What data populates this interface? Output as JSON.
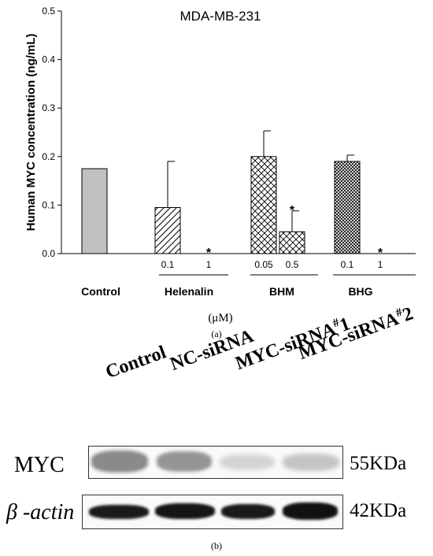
{
  "chart_data": {
    "type": "bar",
    "title": "MDA-MB-231",
    "ylabel": "Human MYC concentration (ng/mL)",
    "xlabel": "(μM)",
    "ylim": [
      0,
      0.5
    ],
    "yticks": [
      "0.0",
      "0.1",
      "0.2",
      "0.3",
      "0.4",
      "0.5"
    ],
    "groups": [
      "Control",
      "Helenalin",
      "BHM",
      "BHG"
    ],
    "bars": [
      {
        "group": "Control",
        "dose": "",
        "value": 0.175,
        "error": 0,
        "pattern": "solid-gray",
        "sig": ""
      },
      {
        "group": "Helenalin",
        "dose": "0.1",
        "value": 0.095,
        "error": 0.095,
        "pattern": "diagonal",
        "sig": ""
      },
      {
        "group": "Helenalin",
        "dose": "1",
        "value": 0,
        "error": 0,
        "pattern": "diagonal",
        "sig": "*"
      },
      {
        "group": "BHM",
        "dose": "0.05",
        "value": 0.2,
        "error": 0.053,
        "pattern": "crosshatch",
        "sig": ""
      },
      {
        "group": "BHM",
        "dose": "0.5",
        "value": 0.045,
        "error": 0.043,
        "pattern": "crosshatch",
        "sig": "*"
      },
      {
        "group": "BHG",
        "dose": "0.1",
        "value": 0.19,
        "error": 0.013,
        "pattern": "dense-crosshatch",
        "sig": ""
      },
      {
        "group": "BHG",
        "dose": "1",
        "value": 0,
        "error": 0,
        "pattern": "dense-crosshatch",
        "sig": "*"
      }
    ],
    "grid": false,
    "panel_label": "(a)"
  },
  "blot": {
    "lanes": [
      {
        "text": "Control",
        "sup": "",
        "suffix": ""
      },
      {
        "text": "NC-siRNA",
        "sup": "",
        "suffix": ""
      },
      {
        "text": "MYC-siRNA",
        "sup": "#",
        "suffix": "1"
      },
      {
        "text": "MYC-siRNA",
        "sup": "#",
        "suffix": "2"
      }
    ],
    "rows": [
      {
        "label": "MYC",
        "size": "55KDa"
      },
      {
        "label": "β -actin",
        "size": "42KDa"
      }
    ],
    "panel_label": "(b)"
  },
  "colors": {
    "control_bar": "#c0c0c0",
    "ink": "#000000"
  }
}
